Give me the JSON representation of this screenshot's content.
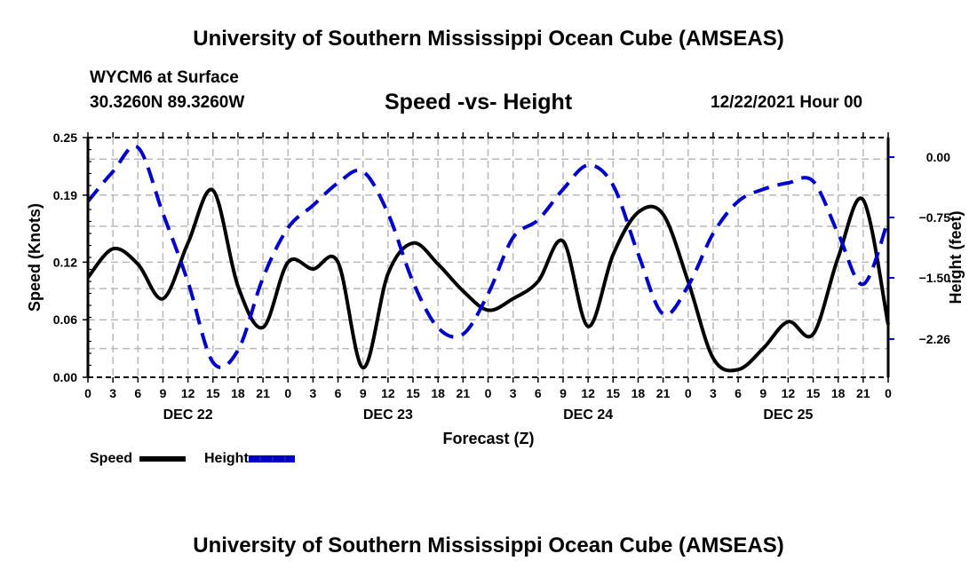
{
  "header": {
    "main_title": "University of Southern Mississippi Ocean Cube (AMSEAS)",
    "station": "WYCM6 at Surface",
    "coordinates": "30.3260N  89.3260W",
    "subtitle": "Speed -vs- Height",
    "datetime": "12/22/2021 Hour 00"
  },
  "footer": {
    "title": "University of Southern Mississippi Ocean Cube (AMSEAS)"
  },
  "legend": {
    "items": [
      {
        "label": "Speed",
        "color": "#000000",
        "style": "solid"
      },
      {
        "label": "Height",
        "color": "#0000cc",
        "style": "dashed"
      }
    ]
  },
  "chart_data": {
    "type": "line",
    "title": "Speed -vs- Height",
    "xlabel": "Forecast (Z)",
    "ylabel": "Speed (Knots)",
    "y2label": "Height (feet)",
    "x_hours": [
      0,
      3,
      6,
      9,
      12,
      15,
      18,
      21,
      24,
      27,
      30,
      33,
      36,
      39,
      42,
      45,
      48,
      51,
      54,
      57,
      60,
      63,
      66,
      69,
      72,
      75,
      78,
      81,
      84,
      87,
      90,
      93,
      96
    ],
    "x_tick_labels": [
      "0",
      "3",
      "6",
      "9",
      "12",
      "15",
      "18",
      "21",
      "0",
      "3",
      "6",
      "9",
      "12",
      "15",
      "18",
      "21",
      "0",
      "3",
      "6",
      "9",
      "12",
      "15",
      "18",
      "21",
      "0",
      "3",
      "6",
      "9",
      "12",
      "15",
      "18",
      "21",
      "0"
    ],
    "day_labels": [
      {
        "label": "DEC 22",
        "center_hour": 12
      },
      {
        "label": "DEC 23",
        "center_hour": 36
      },
      {
        "label": "DEC 24",
        "center_hour": 60
      },
      {
        "label": "DEC 25",
        "center_hour": 84
      }
    ],
    "ylim": [
      0,
      0.25
    ],
    "y_ticks": [
      0.0,
      0.06,
      0.12,
      0.19,
      0.25
    ],
    "y_tick_labels": [
      "0.00",
      "0.06",
      "0.12",
      "0.19",
      "0.25"
    ],
    "y2_ticks": [
      0.0,
      -0.75,
      -1.5,
      -2.26
    ],
    "y2_tick_labels": [
      "0.00",
      "−0.75",
      "−1.50",
      "−2.26"
    ],
    "y2_reference": {
      "value_a": 0.0,
      "value_b": -0.75
    },
    "grid": true,
    "legend_position": "bottom-left",
    "series": [
      {
        "name": "Speed",
        "axis": "left",
        "color": "#000000",
        "style": "solid",
        "values": [
          0.104,
          0.134,
          0.118,
          0.082,
          0.14,
          0.195,
          0.095,
          0.052,
          0.12,
          0.113,
          0.12,
          0.01,
          0.108,
          0.14,
          0.118,
          0.09,
          0.07,
          0.082,
          0.1,
          0.142,
          0.053,
          0.128,
          0.172,
          0.17,
          0.1,
          0.02,
          0.008,
          0.03,
          0.058,
          0.045,
          0.125,
          0.185,
          0.055
        ]
      },
      {
        "name": "Height",
        "axis": "right",
        "color": "#0000cc",
        "style": "dashed",
        "values": [
          -0.55,
          -0.18,
          0.12,
          -0.7,
          -1.55,
          -2.55,
          -2.4,
          -1.5,
          -0.88,
          -0.6,
          -0.32,
          -0.18,
          -0.7,
          -1.55,
          -2.12,
          -2.2,
          -1.7,
          -1.0,
          -0.78,
          -0.4,
          -0.1,
          -0.35,
          -1.2,
          -1.95,
          -1.6,
          -0.95,
          -0.55,
          -0.4,
          -0.32,
          -0.3,
          -0.95,
          -1.58,
          -0.78
        ]
      }
    ]
  }
}
